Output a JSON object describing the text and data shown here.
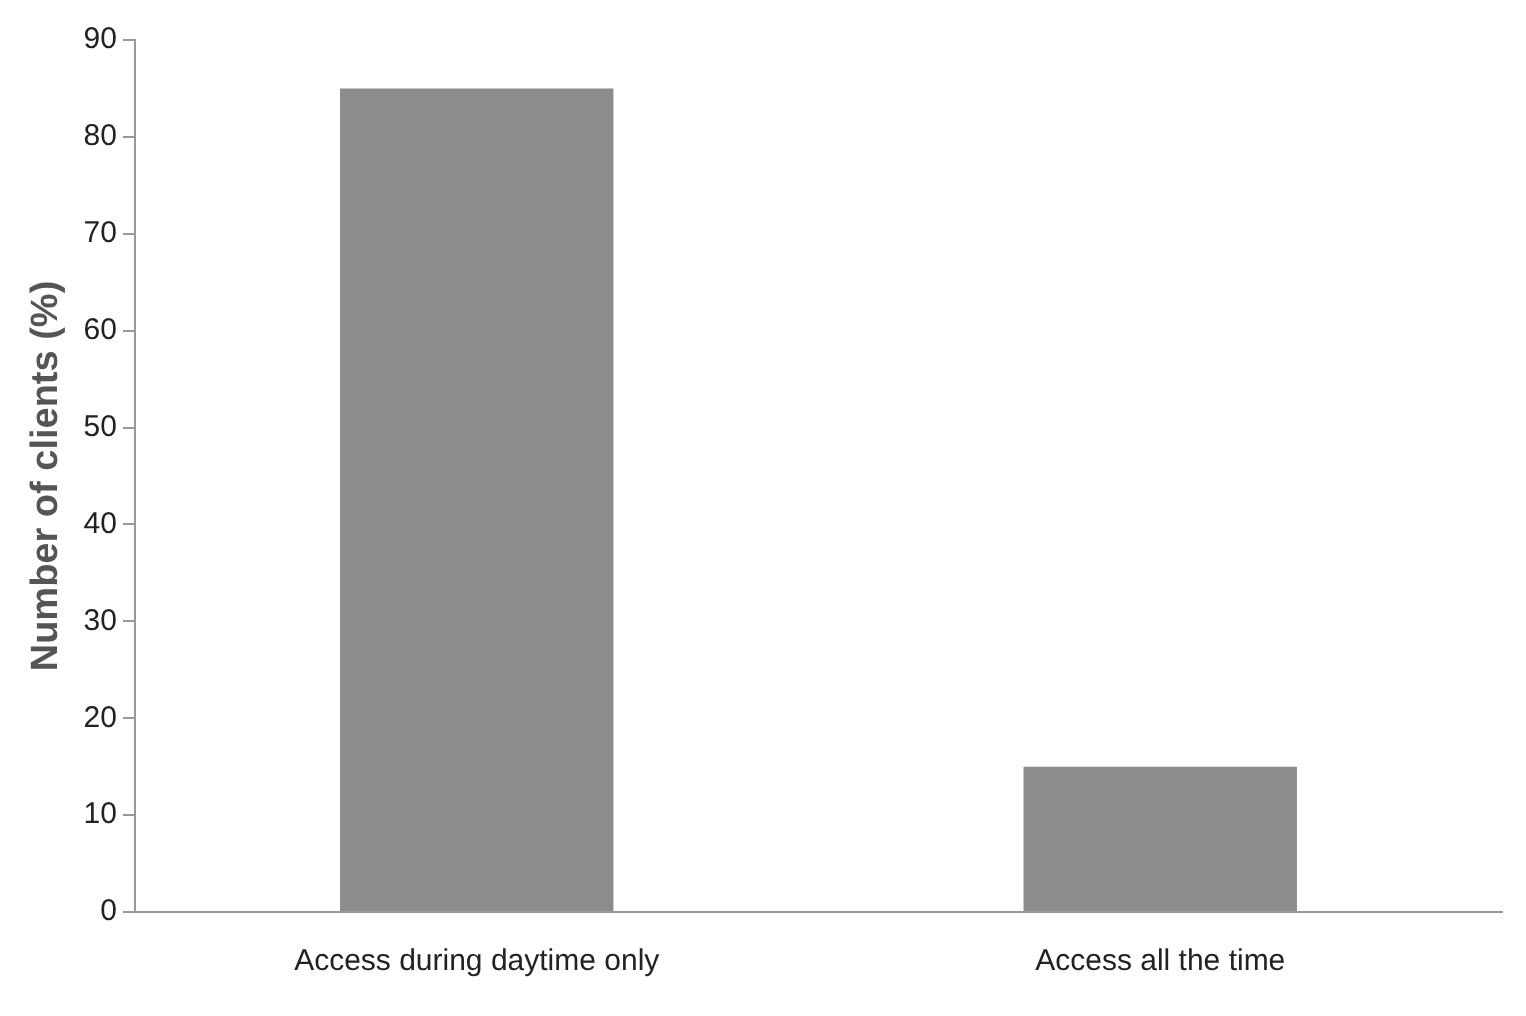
{
  "chart_data": {
    "type": "bar",
    "ylabel": "Number of clients (%)",
    "categories": [
      "Access during daytime only",
      "Access all the time"
    ],
    "values": [
      85,
      15
    ],
    "color": "#8c8c8c",
    "ylim": [
      0,
      90
    ],
    "yticks": [
      0,
      10,
      20,
      30,
      40,
      50,
      60,
      70,
      80,
      90
    ],
    "grid": false,
    "legend": false
  }
}
